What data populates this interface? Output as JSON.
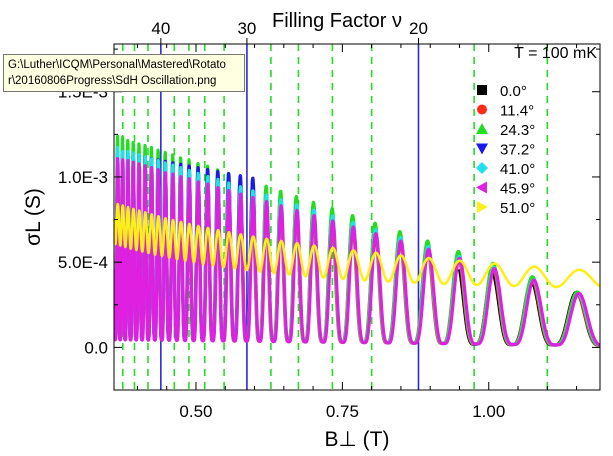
{
  "tooltip": {
    "line1": "G:\\Luther\\ICQM\\Personal\\Mastered\\Rotato",
    "line2": "r\\20160806Progress\\SdH Oscillation.png"
  },
  "chart_data": {
    "type": "line",
    "title": "",
    "top_axis_label": "Filling Factor ν",
    "annotation": "T = 100 mK",
    "xlabel": "B⊥ (T)",
    "ylabel": "σL (S)",
    "xlim": [
      0.36,
      1.19
    ],
    "ylim": [
      -0.00025,
      0.00178
    ],
    "x_ticks": [
      {
        "v": 0.5,
        "label": "0.50"
      },
      {
        "v": 0.75,
        "label": "0.75"
      },
      {
        "v": 1.0,
        "label": "1.00"
      }
    ],
    "y_ticks": [
      {
        "v": 0.0,
        "label": "0.0"
      },
      {
        "v": 0.0005,
        "label": "5.0E-4"
      },
      {
        "v": 0.001,
        "label": "1.0E-3"
      },
      {
        "v": 0.0015,
        "label": "1.5E-3"
      }
    ],
    "top_ticks": [
      {
        "v": 0.44,
        "label": "40"
      },
      {
        "v": 0.587,
        "label": "30"
      },
      {
        "v": 0.88,
        "label": "20"
      }
    ],
    "blue_lines": [
      0.44,
      0.587,
      0.88
    ],
    "green_dashed_lines": [
      0.375,
      0.395,
      0.418,
      0.463,
      0.488,
      0.515,
      0.548,
      0.628,
      0.675,
      0.733,
      0.8,
      0.975,
      1.1
    ],
    "legend_position": "top-right",
    "series": [
      {
        "name": "0.0°",
        "color": "#000000",
        "marker": "square",
        "visible_range": [
          0.95,
          1.19
        ],
        "amp": [
          0.00095,
          0.00029
        ]
      },
      {
        "name": "11.4°",
        "color": "#ff2a1a",
        "marker": "circle",
        "visible_range": [
          0.36,
          1.19
        ],
        "amp": [
          0.0012,
          0.00027
        ]
      },
      {
        "name": "24.3°",
        "color": "#22dd22",
        "marker": "triangle-up",
        "visible_range": [
          0.36,
          1.19
        ],
        "amp": [
          0.00125,
          0.00028
        ]
      },
      {
        "name": "37.2°",
        "color": "#1a1aee",
        "marker": "triangle-down",
        "visible_range": [
          0.36,
          0.6
        ],
        "amp": [
          0.00115,
          0.0006
        ]
      },
      {
        "name": "41.0°",
        "color": "#22e0ee",
        "marker": "diamond",
        "visible_range": [
          0.36,
          1.19
        ],
        "amp": [
          0.00118,
          0.00027
        ]
      },
      {
        "name": "45.9°",
        "color": "#e020e0",
        "marker": "triangle-left",
        "visible_range": [
          0.36,
          1.19
        ],
        "amp": [
          0.00112,
          0.00028
        ]
      },
      {
        "name": "51.0°",
        "color": "#ffee1a",
        "marker": "triangle-right",
        "visible_range": [
          0.36,
          1.19
        ],
        "amp": [
          0.0006,
          0.00024
        ]
      }
    ]
  }
}
